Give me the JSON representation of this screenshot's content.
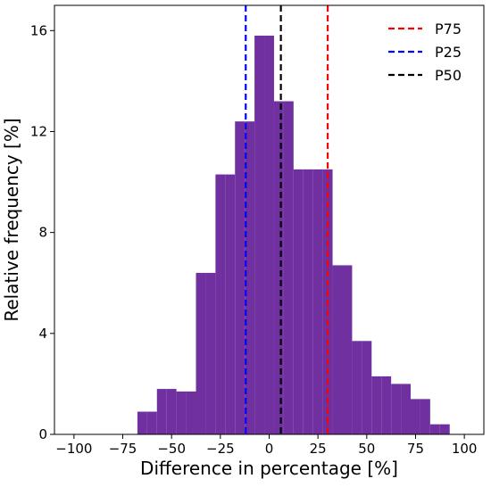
{
  "chart_data": {
    "type": "bar",
    "xlabel": "Difference in percentage [%]",
    "ylabel": "Relative frequency [%]",
    "xlim": [
      -110,
      110
    ],
    "ylim": [
      0,
      17
    ],
    "xticks": [
      -100,
      -75,
      -50,
      -25,
      0,
      25,
      50,
      75,
      100
    ],
    "xtick_labels": [
      "−100",
      "−75",
      "−50",
      "−25",
      "0",
      "25",
      "50",
      "75",
      "100"
    ],
    "yticks": [
      0,
      4,
      8,
      12,
      16
    ],
    "ytick_labels": [
      "0",
      "4",
      "8",
      "12",
      "16"
    ],
    "bins": [
      {
        "start": -67.5,
        "end": -62.5,
        "value": 0.9
      },
      {
        "start": -62.5,
        "end": -57.5,
        "value": 0.9
      },
      {
        "start": -57.5,
        "end": -52.5,
        "value": 1.8
      },
      {
        "start": -52.5,
        "end": -47.5,
        "value": 1.8
      },
      {
        "start": -47.5,
        "end": -42.5,
        "value": 1.7
      },
      {
        "start": -42.5,
        "end": -37.5,
        "value": 1.7
      },
      {
        "start": -37.5,
        "end": -32.5,
        "value": 6.4
      },
      {
        "start": -32.5,
        "end": -27.5,
        "value": 6.4
      },
      {
        "start": -27.5,
        "end": -22.5,
        "value": 10.3
      },
      {
        "start": -22.5,
        "end": -17.5,
        "value": 10.3
      },
      {
        "start": -17.5,
        "end": -12.5,
        "value": 12.4
      },
      {
        "start": -12.5,
        "end": -7.5,
        "value": 12.4
      },
      {
        "start": -7.5,
        "end": -2.5,
        "value": 15.8
      },
      {
        "start": -2.5,
        "end": 2.5,
        "value": 15.8
      },
      {
        "start": 2.5,
        "end": 7.5,
        "value": 13.2
      },
      {
        "start": 7.5,
        "end": 12.5,
        "value": 13.2
      },
      {
        "start": 12.5,
        "end": 17.5,
        "value": 10.5
      },
      {
        "start": 17.5,
        "end": 22.5,
        "value": 10.5
      },
      {
        "start": 22.5,
        "end": 27.5,
        "value": 10.5
      },
      {
        "start": 27.5,
        "end": 32.5,
        "value": 10.5
      },
      {
        "start": 32.5,
        "end": 37.5,
        "value": 6.7
      },
      {
        "start": 37.5,
        "end": 42.5,
        "value": 6.7
      },
      {
        "start": 42.5,
        "end": 47.5,
        "value": 3.7
      },
      {
        "start": 47.5,
        "end": 52.5,
        "value": 3.7
      },
      {
        "start": 52.5,
        "end": 57.5,
        "value": 2.3
      },
      {
        "start": 57.5,
        "end": 62.5,
        "value": 2.3
      },
      {
        "start": 62.5,
        "end": 67.5,
        "value": 2.0
      },
      {
        "start": 67.5,
        "end": 72.5,
        "value": 2.0
      },
      {
        "start": 72.5,
        "end": 77.5,
        "value": 1.4
      },
      {
        "start": 77.5,
        "end": 82.5,
        "value": 1.4
      },
      {
        "start": 82.5,
        "end": 87.5,
        "value": 0.4
      },
      {
        "start": 87.5,
        "end": 92.5,
        "value": 0.4
      }
    ],
    "reference_lines": [
      {
        "label": "P75",
        "x": 30,
        "color": "#ff0000"
      },
      {
        "label": "P25",
        "x": -12,
        "color": "#0000ff"
      },
      {
        "label": "P50",
        "x": 6,
        "color": "#000000"
      }
    ],
    "bar_color": "#7030a0",
    "grid": false,
    "legend_position": "top-right"
  }
}
